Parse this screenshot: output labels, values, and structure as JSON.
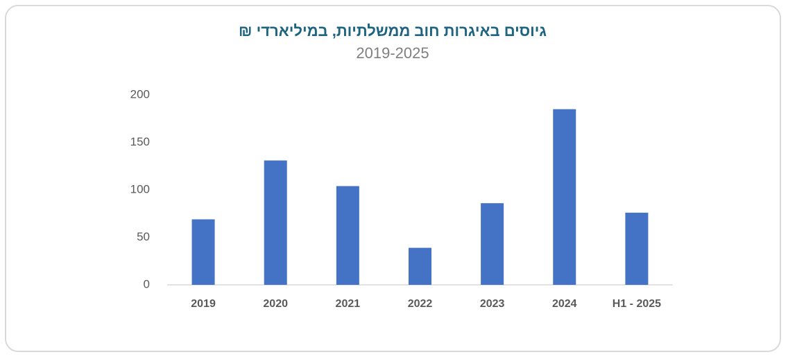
{
  "chart_data": {
    "type": "bar",
    "title": "גיוסים באיגרות חוב ממשלתיות, במיליארדי ₪",
    "subtitle": "2019-2025",
    "categories": [
      "2019",
      "2020",
      "2021",
      "2022",
      "2023",
      "2024",
      "H1 - 2025"
    ],
    "values": [
      69,
      131,
      104,
      39,
      86,
      185,
      76
    ],
    "color": "#4472c4",
    "ylim": [
      0,
      200
    ],
    "yticks": [
      0,
      50,
      100,
      150,
      200
    ]
  }
}
